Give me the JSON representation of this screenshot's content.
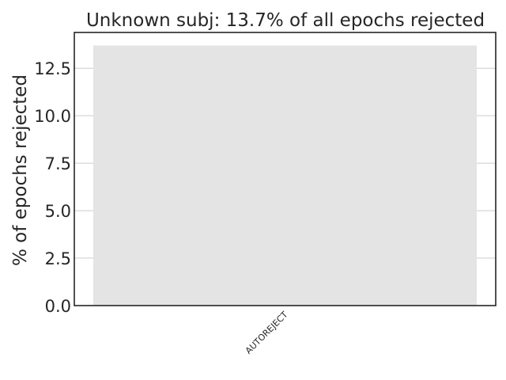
{
  "chart_data": {
    "type": "bar",
    "title": "Unknown subj: 13.7% of all epochs rejected",
    "xlabel": "",
    "ylabel": "% of epochs rejected",
    "categories": [
      "AUTOREJECT"
    ],
    "values": [
      13.7
    ],
    "ylim": [
      0,
      14.385
    ],
    "yticks": [
      "0.0",
      "2.5",
      "5.0",
      "7.5",
      "10.0",
      "12.5"
    ],
    "grid": true,
    "legend": false,
    "colors": {
      "bar": "#e4e4e4",
      "grid": "#cccccc",
      "axes": "#262626",
      "background": "#ffffff"
    }
  }
}
